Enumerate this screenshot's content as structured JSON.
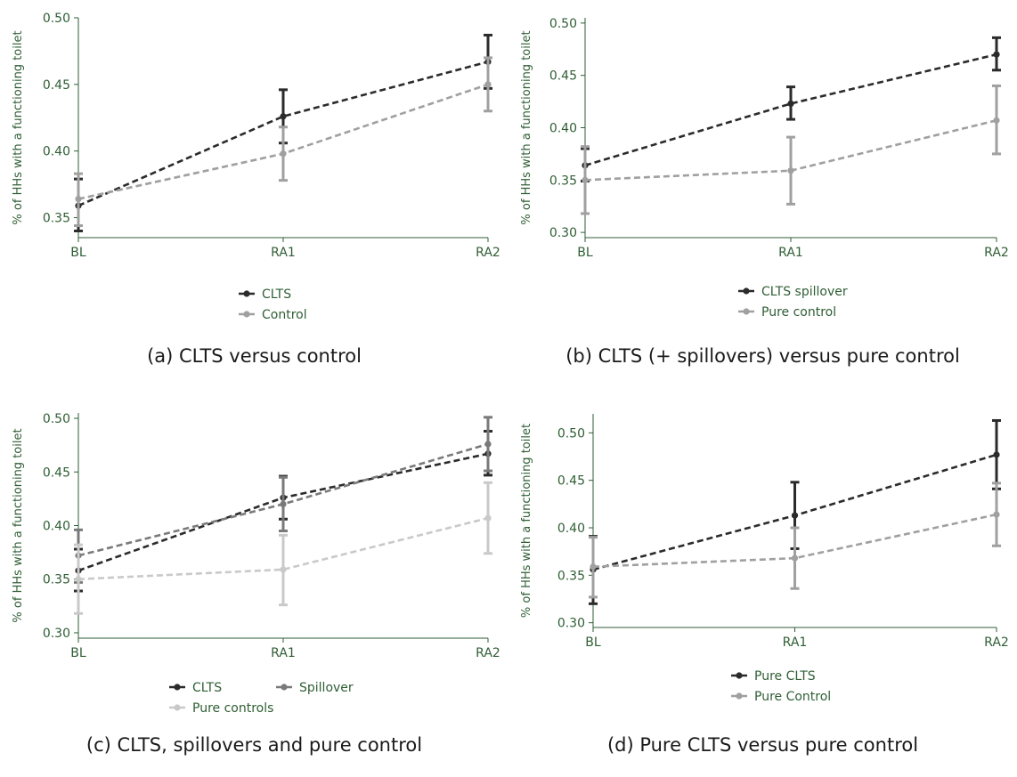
{
  "chart_data": [
    {
      "type": "line",
      "caption": "(a) CLTS versus control",
      "ylabel": "% of HHs with a functioning toilet",
      "categories": [
        "BL",
        "RA1",
        "RA2"
      ],
      "ylim": [
        0.335,
        0.5
      ],
      "yticks": [
        0.35,
        0.4,
        0.45,
        0.5
      ],
      "series": [
        {
          "name": "CLTS",
          "color": "#2b2b2b",
          "values": [
            0.359,
            0.426,
            0.467
          ],
          "ci_low": [
            0.34,
            0.406,
            0.447
          ],
          "ci_high": [
            0.379,
            0.446,
            0.487
          ]
        },
        {
          "name": "Control",
          "color": "#a0a0a0",
          "values": [
            0.364,
            0.398,
            0.45
          ],
          "ci_low": [
            0.344,
            0.378,
            0.43
          ],
          "ci_high": [
            0.383,
            0.418,
            0.47
          ]
        }
      ]
    },
    {
      "type": "line",
      "caption": "(b) CLTS (+ spillovers) versus pure control",
      "ylabel": "% of HHs with a functioning toilet",
      "categories": [
        "BL",
        "RA1",
        "RA2"
      ],
      "ylim": [
        0.295,
        0.505
      ],
      "yticks": [
        0.3,
        0.35,
        0.4,
        0.45,
        0.5
      ],
      "series": [
        {
          "name": "CLTS spillover",
          "color": "#2b2b2b",
          "values": [
            0.364,
            0.423,
            0.47
          ],
          "ci_low": [
            0.349,
            0.408,
            0.455
          ],
          "ci_high": [
            0.38,
            0.439,
            0.486
          ]
        },
        {
          "name": "Pure control",
          "color": "#a0a0a0",
          "values": [
            0.35,
            0.359,
            0.407
          ],
          "ci_low": [
            0.318,
            0.327,
            0.375
          ],
          "ci_high": [
            0.382,
            0.391,
            0.44
          ]
        }
      ]
    },
    {
      "type": "line",
      "caption": "(c) CLTS, spillovers and pure control",
      "ylabel": "% of HHs with a functioning toilet",
      "categories": [
        "BL",
        "RA1",
        "RA2"
      ],
      "ylim": [
        0.295,
        0.505
      ],
      "yticks": [
        0.3,
        0.35,
        0.4,
        0.45,
        0.5
      ],
      "series": [
        {
          "name": "CLTS",
          "color": "#2b2b2b",
          "values": [
            0.358,
            0.426,
            0.467
          ],
          "ci_low": [
            0.339,
            0.406,
            0.447
          ],
          "ci_high": [
            0.378,
            0.446,
            0.488
          ]
        },
        {
          "name": "Spillover",
          "color": "#7a7a7a",
          "values": [
            0.372,
            0.42,
            0.476
          ],
          "ci_low": [
            0.347,
            0.395,
            0.451
          ],
          "ci_high": [
            0.396,
            0.445,
            0.501
          ]
        },
        {
          "name": "Pure controls",
          "color": "#c9c9c9",
          "values": [
            0.35,
            0.359,
            0.407
          ],
          "ci_low": [
            0.318,
            0.326,
            0.374
          ],
          "ci_high": [
            0.382,
            0.391,
            0.44
          ]
        }
      ]
    },
    {
      "type": "line",
      "caption": "(d) Pure CLTS versus pure control",
      "ylabel": "% of HHs with a functioning toilet",
      "categories": [
        "BL",
        "RA1",
        "RA2"
      ],
      "ylim": [
        0.295,
        0.52
      ],
      "yticks": [
        0.3,
        0.35,
        0.4,
        0.45,
        0.5
      ],
      "series": [
        {
          "name": "Pure CLTS",
          "color": "#2b2b2b",
          "values": [
            0.356,
            0.413,
            0.477
          ],
          "ci_low": [
            0.32,
            0.378,
            0.441
          ],
          "ci_high": [
            0.391,
            0.448,
            0.513
          ]
        },
        {
          "name": "Pure Control",
          "color": "#a0a0a0",
          "values": [
            0.359,
            0.368,
            0.414
          ],
          "ci_low": [
            0.327,
            0.336,
            0.381
          ],
          "ci_high": [
            0.39,
            0.4,
            0.447
          ]
        }
      ]
    }
  ]
}
